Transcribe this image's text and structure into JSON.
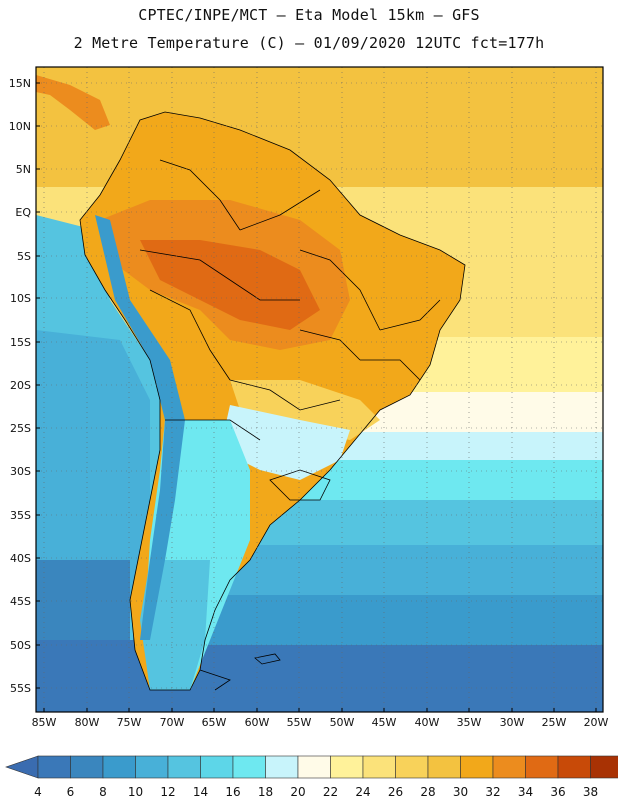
{
  "title": {
    "line1": "CPTEC/INPE/MCT –  Eta Model 15km – GFS",
    "line2": "2 Metre Temperature (C) – 01/09/2020 12UTC fct=177h"
  },
  "lat_labels": [
    "15N",
    "10N",
    "5N",
    "EQ",
    "5S",
    "10S",
    "15S",
    "20S",
    "25S",
    "30S",
    "35S",
    "40S",
    "45S",
    "50S",
    "55S"
  ],
  "lon_labels": [
    "85W",
    "80W",
    "75W",
    "70W",
    "65W",
    "60W",
    "55W",
    "50W",
    "45W",
    "40W",
    "35W",
    "30W",
    "25W",
    "20W"
  ],
  "colorbar": {
    "ticks": [
      "4",
      "6",
      "8",
      "10",
      "12",
      "14",
      "16",
      "18",
      "20",
      "22",
      "24",
      "26",
      "28",
      "30",
      "32",
      "34",
      "36",
      "38"
    ],
    "colors": [
      "#3a78b8",
      "#3a86be",
      "#3a9bcc",
      "#48b0d8",
      "#55c4e0",
      "#5dd6e8",
      "#6ee8f0",
      "#c8f4fb",
      "#fffbe8",
      "#fff29a",
      "#fbe27a",
      "#f8d25a",
      "#f3c240",
      "#f2a81a",
      "#ec8c1e",
      "#e06a14",
      "#c84a08",
      "#a83204"
    ],
    "low_color": "#3a6cb0",
    "high_color": "#a03004"
  }
}
